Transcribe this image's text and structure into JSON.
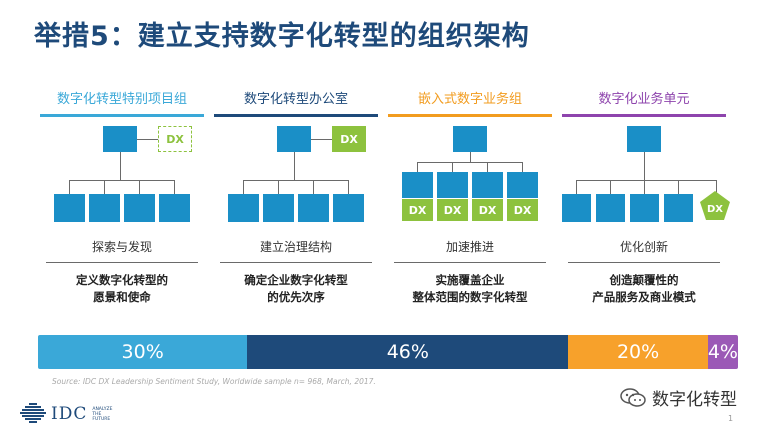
{
  "title": "举措5：建立支持数字化转型的组织架构",
  "dx_label": "DX",
  "columns": [
    {
      "heading": "数字化转型特别项目组",
      "color": "#3aa8d8",
      "description": "探索与发现",
      "goal_line1": "定义数字化转型的",
      "goal_line2": "愿景和使命"
    },
    {
      "heading": "数字化转型办公室",
      "color": "#1e4a7a",
      "description": "建立治理结构",
      "goal_line1": "确定企业数字化转型",
      "goal_line2": "的优先次序"
    },
    {
      "heading": "嵌入式数字业务组",
      "color": "#f29c1f",
      "description": "加速推进",
      "goal_line1": "实施覆盖企业",
      "goal_line2": "整体范围的数字化转型"
    },
    {
      "heading": "数字化业务单元",
      "color": "#8e44ad",
      "description": "优化创新",
      "goal_line1": "创造颠覆性的",
      "goal_line2": "产品服务及商业模式"
    }
  ],
  "colors": {
    "org_box": "#1a8fc7",
    "dx_green": "#8dc23e",
    "connector": "#6a6a6a"
  },
  "bar": [
    {
      "label": "30%",
      "value": 30,
      "color": "#3aa8d8"
    },
    {
      "label": "46%",
      "value": 46,
      "color": "#1e4a7a"
    },
    {
      "label": "20%",
      "value": 20,
      "color": "#f7a12b"
    },
    {
      "label": "4%",
      "value": 4,
      "color": "#9b59b6"
    }
  ],
  "source": "Source: IDC DX Leadership Sentiment Study, Worldwide sample n= 968, March, 2017.",
  "logo": {
    "brand": "IDC",
    "tagline": "ANALYZE THE FUTURE"
  },
  "wechat": {
    "account": "数字化转型",
    "icon": "wechat-icon"
  },
  "page_number": "1"
}
